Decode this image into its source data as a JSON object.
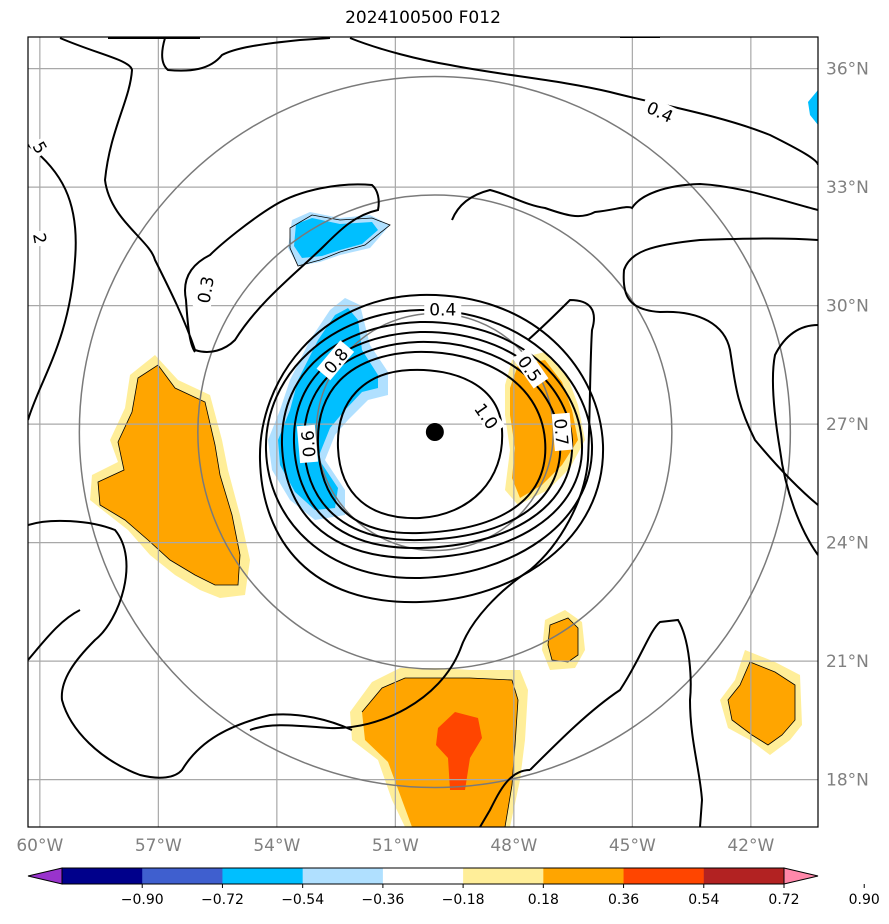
{
  "title": "2024100500 F012",
  "chart_data": {
    "type": "heatmap",
    "title": "2024100500 F012",
    "map_extent": {
      "lon": [
        -60.3,
        -40.3
      ],
      "lat": [
        16.8,
        36.8
      ]
    },
    "lat_ticks": [
      {
        "value": 36,
        "label": "36°N"
      },
      {
        "value": 33,
        "label": "33°N"
      },
      {
        "value": 30,
        "label": "30°N"
      },
      {
        "value": 27,
        "label": "27°N"
      },
      {
        "value": 24,
        "label": "24°N"
      },
      {
        "value": 21,
        "label": "21°N"
      },
      {
        "value": 18,
        "label": "18°N"
      }
    ],
    "lon_ticks": [
      {
        "value": -60,
        "label": "60°W"
      },
      {
        "value": -57,
        "label": "57°W"
      },
      {
        "value": -54,
        "label": "54°W"
      },
      {
        "value": -51,
        "label": "51°W"
      },
      {
        "value": -48,
        "label": "48°W"
      },
      {
        "value": -45,
        "label": "45°W"
      },
      {
        "value": -42,
        "label": "42°W"
      }
    ],
    "grid": true,
    "center": {
      "lon": -50.0,
      "lat": 26.8
    },
    "range_rings": [
      3,
      6,
      9
    ],
    "contour_labels": [
      {
        "text": "0.4",
        "lon": -49.8,
        "lat": 29.9,
        "rot": 0
      },
      {
        "text": "0.4",
        "lon": -44.3,
        "lat": 34.9,
        "rot": 25
      },
      {
        "text": "0.3",
        "lon": -55.8,
        "lat": 30.4,
        "rot": -80
      },
      {
        "text": "0.8",
        "lon": -52.5,
        "lat": 28.6,
        "rot": -50
      },
      {
        "text": "0.5",
        "lon": -47.6,
        "lat": 28.4,
        "rot": 55
      },
      {
        "text": "0.7",
        "lon": -46.8,
        "lat": 26.8,
        "rot": 85
      },
      {
        "text": "1.0",
        "lon": -48.7,
        "lat": 27.2,
        "rot": 55
      },
      {
        "text": "0.6",
        "lon": -53.2,
        "lat": 26.5,
        "rot": -95
      },
      {
        "text": "5",
        "lon": -60.0,
        "lat": 34.0,
        "rot": 60
      },
      {
        "text": "2",
        "lon": -60.0,
        "lat": 31.7,
        "rot": 80
      }
    ],
    "colorbar": {
      "ticks": [
        -0.9,
        -0.72,
        -0.54,
        -0.36,
        -0.18,
        0.18,
        0.36,
        0.54,
        0.72,
        0.9
      ],
      "tick_labels": [
        "−0.90",
        "−0.72",
        "−0.54",
        "−0.36",
        "−0.18",
        "0.18",
        "0.36",
        "0.54",
        "0.72",
        "0.90"
      ],
      "colors": [
        "#9933cc",
        "#00008b",
        "#3f5fcf",
        "#00bfff",
        "#b0e0ff",
        "#ffffff",
        "#ffee99",
        "#ffa500",
        "#ff4500",
        "#b22222",
        "#ff88aa"
      ],
      "extend": "both"
    }
  }
}
